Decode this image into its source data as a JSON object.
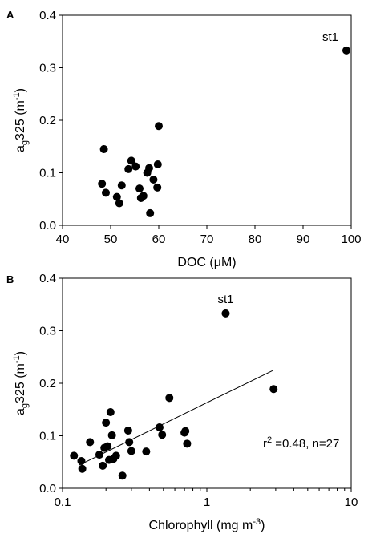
{
  "chart_data": [
    {
      "panel": "A",
      "type": "scatter",
      "xlabel": "DOC (μM)",
      "ylabel_main": "a",
      "ylabel_sub": "g",
      "ylabel_rest": "325 (m",
      "ylabel_sup": "-1",
      "ylabel_close": ")",
      "xlim": [
        40,
        100
      ],
      "ylim": [
        0,
        0.4
      ],
      "xticks": [
        "40",
        "50",
        "60",
        "70",
        "80",
        "90",
        "100"
      ],
      "xtick_values": [
        40,
        50,
        60,
        70,
        80,
        90,
        100
      ],
      "yticks": [
        "0.0",
        "0.1",
        "0.2",
        "0.3",
        "0.4"
      ],
      "ytick_values": [
        0,
        0.1,
        0.2,
        0.3,
        0.4
      ],
      "x_scale": "linear",
      "grid": false,
      "points": [
        {
          "x": 48.2,
          "y": 0.079
        },
        {
          "x": 48.6,
          "y": 0.145
        },
        {
          "x": 49.0,
          "y": 0.062
        },
        {
          "x": 51.3,
          "y": 0.054
        },
        {
          "x": 51.8,
          "y": 0.042
        },
        {
          "x": 52.3,
          "y": 0.076
        },
        {
          "x": 53.7,
          "y": 0.107
        },
        {
          "x": 54.3,
          "y": 0.123
        },
        {
          "x": 55.2,
          "y": 0.112
        },
        {
          "x": 56.0,
          "y": 0.07
        },
        {
          "x": 56.3,
          "y": 0.052
        },
        {
          "x": 56.8,
          "y": 0.056
        },
        {
          "x": 57.6,
          "y": 0.1
        },
        {
          "x": 58.0,
          "y": 0.109
        },
        {
          "x": 58.2,
          "y": 0.023
        },
        {
          "x": 58.9,
          "y": 0.087
        },
        {
          "x": 59.7,
          "y": 0.072
        },
        {
          "x": 59.8,
          "y": 0.116
        },
        {
          "x": 60.0,
          "y": 0.189
        },
        {
          "x": 99.0,
          "y": 0.333
        }
      ],
      "annotation": {
        "text": "st1",
        "x": 99.0,
        "y": 0.333
      }
    },
    {
      "panel": "B",
      "type": "scatter",
      "xlabel_main": "Chlorophyll (mg m",
      "xlabel_sup": "-3",
      "xlabel_close": ")",
      "ylabel_main": "a",
      "ylabel_sub": "g",
      "ylabel_rest": "325 (m",
      "ylabel_sup": "-1",
      "ylabel_close": ")",
      "xlim": [
        0.1,
        10
      ],
      "ylim": [
        0,
        0.4
      ],
      "xticks": [
        "0.1",
        "1",
        "10"
      ],
      "xtick_values": [
        0.1,
        1,
        10
      ],
      "yticks": [
        "0.0",
        "0.1",
        "0.2",
        "0.3",
        "0.4"
      ],
      "ytick_values": [
        0,
        0.1,
        0.2,
        0.3,
        0.4
      ],
      "x_scale": "log",
      "grid": false,
      "points": [
        {
          "x": 0.12,
          "y": 0.062
        },
        {
          "x": 0.135,
          "y": 0.052
        },
        {
          "x": 0.137,
          "y": 0.037
        },
        {
          "x": 0.155,
          "y": 0.088
        },
        {
          "x": 0.18,
          "y": 0.064
        },
        {
          "x": 0.19,
          "y": 0.043
        },
        {
          "x": 0.195,
          "y": 0.077
        },
        {
          "x": 0.2,
          "y": 0.125
        },
        {
          "x": 0.205,
          "y": 0.08
        },
        {
          "x": 0.21,
          "y": 0.054
        },
        {
          "x": 0.215,
          "y": 0.145
        },
        {
          "x": 0.22,
          "y": 0.101
        },
        {
          "x": 0.225,
          "y": 0.056
        },
        {
          "x": 0.235,
          "y": 0.062
        },
        {
          "x": 0.26,
          "y": 0.024
        },
        {
          "x": 0.285,
          "y": 0.11
        },
        {
          "x": 0.29,
          "y": 0.088
        },
        {
          "x": 0.3,
          "y": 0.071
        },
        {
          "x": 0.38,
          "y": 0.07
        },
        {
          "x": 0.47,
          "y": 0.116
        },
        {
          "x": 0.49,
          "y": 0.102
        },
        {
          "x": 0.55,
          "y": 0.172
        },
        {
          "x": 0.7,
          "y": 0.106
        },
        {
          "x": 0.71,
          "y": 0.109
        },
        {
          "x": 0.73,
          "y": 0.085
        },
        {
          "x": 1.35,
          "y": 0.333
        },
        {
          "x": 2.9,
          "y": 0.189
        }
      ],
      "regression_line": {
        "x": [
          0.13,
          2.85
        ],
        "y": [
          0.044,
          0.224
        ]
      },
      "annotation": {
        "text": "st1",
        "x": 1.35,
        "y": 0.333
      },
      "stats": {
        "r_main": "r",
        "r_sup": "2",
        "r_rest": " =0.48, n=27"
      }
    }
  ]
}
